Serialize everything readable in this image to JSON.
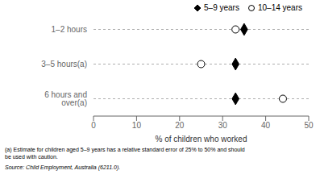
{
  "chart_data": {
    "type": "scatter",
    "categories": [
      "1–2 hours",
      "3–5 hours(a)",
      "6 hours and over(a)"
    ],
    "series": [
      {
        "name": "5–9 years",
        "color": "#000000",
        "marker": "diamond",
        "values": [
          35.0,
          33.0,
          33.0
        ]
      },
      {
        "name": "10–14 years",
        "color": "#000000",
        "marker": "open_circle",
        "values": [
          33.0,
          25.0,
          44.0
        ]
      }
    ],
    "xlabel": "% of children who worked",
    "xlim": [
      0,
      50
    ],
    "xticks": [
      0,
      10,
      20,
      30,
      40,
      50
    ],
    "legend": "upper right",
    "grid": false,
    "annotations": [
      "(a) Estimate for children aged 5–9 years has a relative standard error of 25% to 50% and should",
      "be used with caution.",
      "Source: Child Employment, Australia (6211.0)."
    ]
  }
}
